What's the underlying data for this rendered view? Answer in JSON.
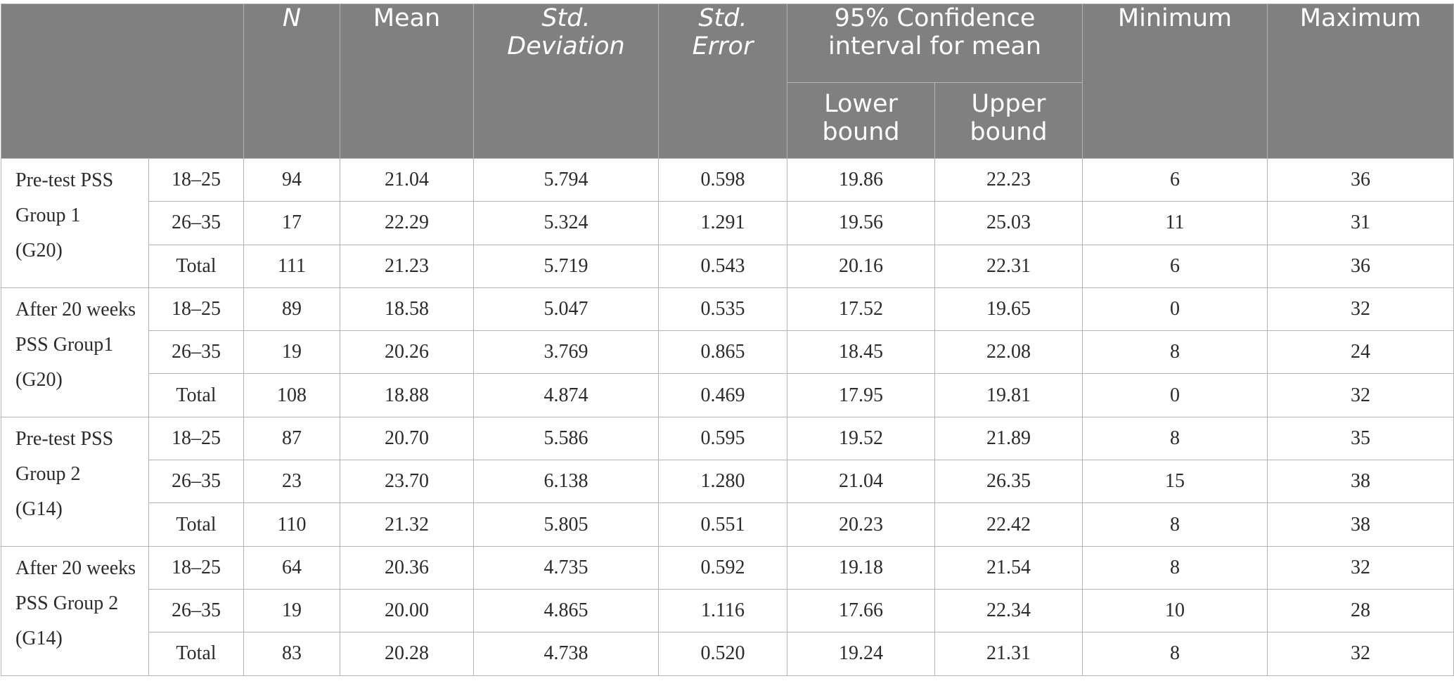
{
  "table": {
    "headers": {
      "blank": "",
      "n": "N",
      "mean": "Mean",
      "std_deviation_line1": "Std.",
      "std_deviation_line2": "Deviation",
      "std_error_line1": "Std.",
      "std_error_line2": "Error",
      "ci_line1": "95% Confidence",
      "ci_line2": "interval for mean",
      "lower_line1": "Lower",
      "lower_line2": "bound",
      "upper_line1": "Upper",
      "upper_line2": "bound",
      "minimum": "Minimum",
      "maximum": "Maximum"
    },
    "groups": [
      {
        "label_lines": [
          "Pre-test PSS",
          "Group 1",
          "(G20)"
        ],
        "rows": [
          {
            "age": "18–25",
            "n": "94",
            "mean": "21.04",
            "sd": "5.794",
            "se": "0.598",
            "lower": "19.86",
            "upper": "22.23",
            "min": "6",
            "max": "36"
          },
          {
            "age": "26–35",
            "n": "17",
            "mean": "22.29",
            "sd": "5.324",
            "se": "1.291",
            "lower": "19.56",
            "upper": "25.03",
            "min": "11",
            "max": "31"
          },
          {
            "age": "Total",
            "n": "111",
            "mean": "21.23",
            "sd": "5.719",
            "se": "0.543",
            "lower": "20.16",
            "upper": "22.31",
            "min": "6",
            "max": "36"
          }
        ]
      },
      {
        "label_lines": [
          "After 20 weeks",
          "PSS Group1",
          "(G20)"
        ],
        "rows": [
          {
            "age": "18–25",
            "n": "89",
            "mean": "18.58",
            "sd": "5.047",
            "se": "0.535",
            "lower": "17.52",
            "upper": "19.65",
            "min": "0",
            "max": "32"
          },
          {
            "age": "26–35",
            "n": "19",
            "mean": "20.26",
            "sd": "3.769",
            "se": "0.865",
            "lower": "18.45",
            "upper": "22.08",
            "min": "8",
            "max": "24"
          },
          {
            "age": "Total",
            "n": "108",
            "mean": "18.88",
            "sd": "4.874",
            "se": "0.469",
            "lower": "17.95",
            "upper": "19.81",
            "min": "0",
            "max": "32"
          }
        ]
      },
      {
        "label_lines": [
          "Pre-test PSS",
          "Group 2",
          "(G14)"
        ],
        "rows": [
          {
            "age": "18–25",
            "n": "87",
            "mean": "20.70",
            "sd": "5.586",
            "se": "0.595",
            "lower": "19.52",
            "upper": "21.89",
            "min": "8",
            "max": "35"
          },
          {
            "age": "26–35",
            "n": "23",
            "mean": "23.70",
            "sd": "6.138",
            "se": "1.280",
            "lower": "21.04",
            "upper": "26.35",
            "min": "15",
            "max": "38"
          },
          {
            "age": "Total",
            "n": "110",
            "mean": "21.32",
            "sd": "5.805",
            "se": "0.551",
            "lower": "20.23",
            "upper": "22.42",
            "min": "8",
            "max": "38"
          }
        ]
      },
      {
        "label_lines": [
          "After 20 weeks",
          "PSS Group 2",
          "(G14)"
        ],
        "rows": [
          {
            "age": "18–25",
            "n": "64",
            "mean": "20.36",
            "sd": "4.735",
            "se": "0.592",
            "lower": "19.18",
            "upper": "21.54",
            "min": "8",
            "max": "32"
          },
          {
            "age": "26–35",
            "n": "19",
            "mean": "20.00",
            "sd": "4.865",
            "se": "1.116",
            "lower": "17.66",
            "upper": "22.34",
            "min": "10",
            "max": "28"
          },
          {
            "age": "Total",
            "n": "83",
            "mean": "20.28",
            "sd": "4.738",
            "se": "0.520",
            "lower": "19.24",
            "upper": "21.31",
            "min": "8",
            "max": "32"
          }
        ]
      }
    ]
  }
}
